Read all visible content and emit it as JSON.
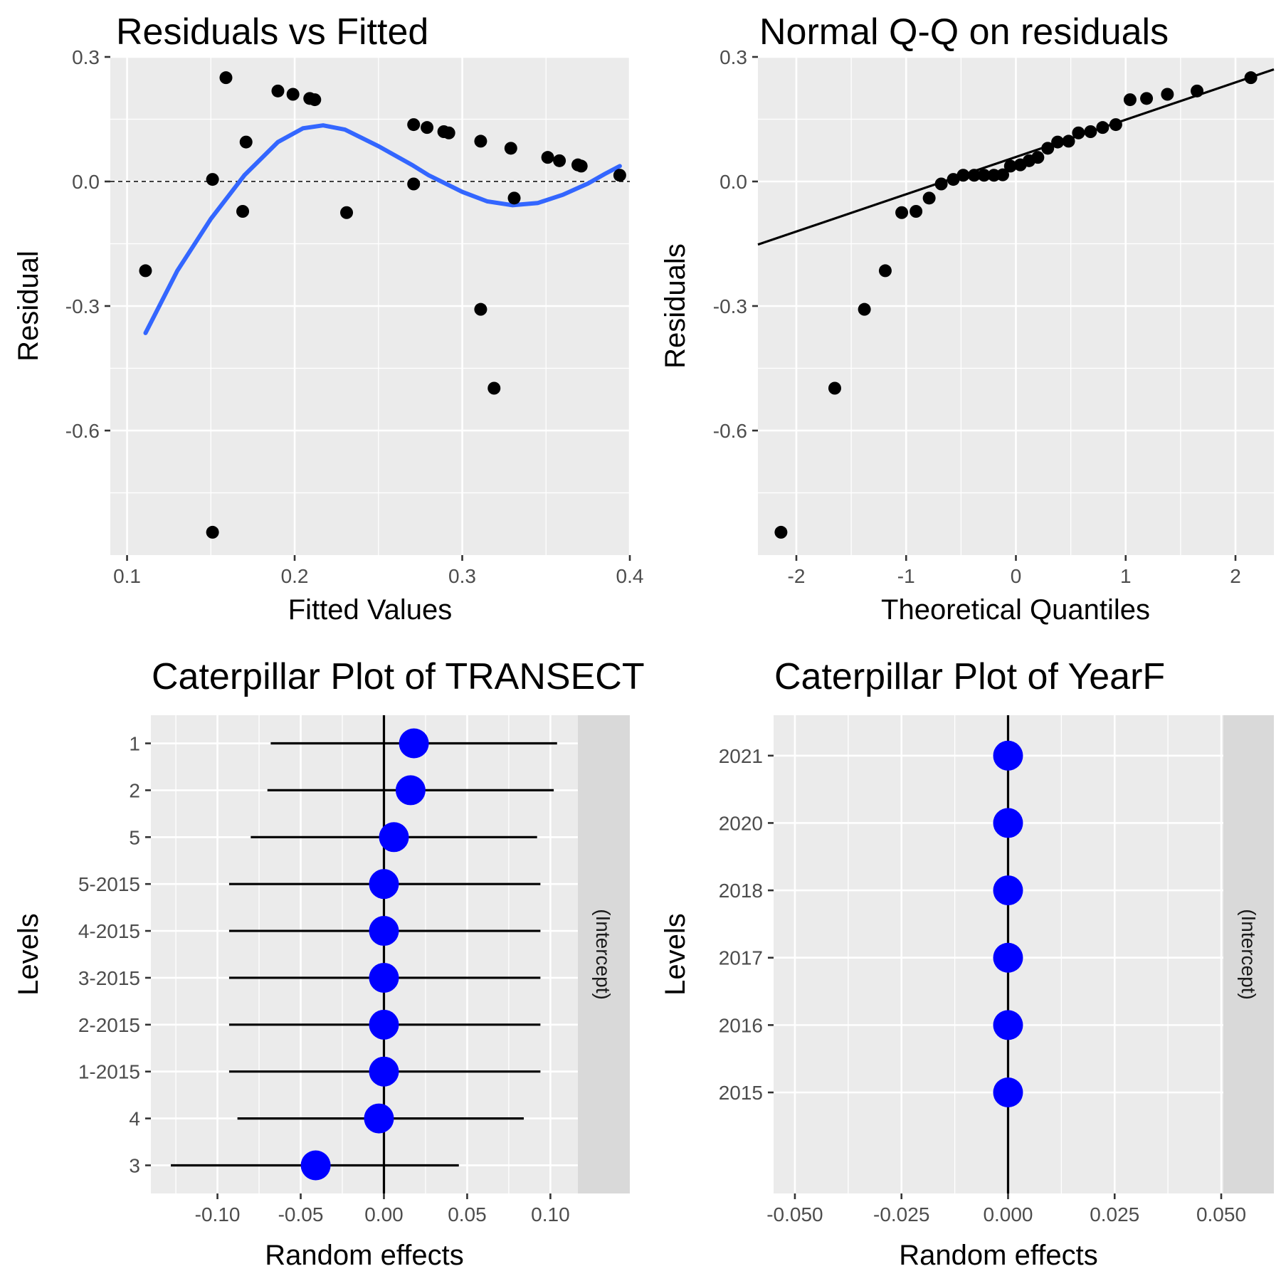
{
  "chart_data": [
    {
      "type": "scatter",
      "title": "Residuals vs Fitted",
      "xlabel": "Fitted Values",
      "ylabel": "Residual",
      "xlim": [
        0.09,
        0.4
      ],
      "ylim": [
        -0.9,
        0.3
      ],
      "x_ticks": [
        0.1,
        0.2,
        0.3,
        0.4
      ],
      "x_tick_labels": [
        "0.1",
        "0.2",
        "0.3",
        "0.4"
      ],
      "y_ticks": [
        0.3,
        0.0,
        -0.3,
        -0.6
      ],
      "y_tick_labels": [
        "0.3",
        "0.0",
        "-0.3",
        "-0.6"
      ],
      "grid": true,
      "reference_line": {
        "y": 0,
        "style": "dashed"
      },
      "points": [
        {
          "x": 0.111,
          "y": -0.215
        },
        {
          "x": 0.151,
          "y": 0.005
        },
        {
          "x": 0.151,
          "y": -0.845
        },
        {
          "x": 0.159,
          "y": 0.25
        },
        {
          "x": 0.169,
          "y": -0.072
        },
        {
          "x": 0.171,
          "y": 0.095
        },
        {
          "x": 0.19,
          "y": 0.218
        },
        {
          "x": 0.199,
          "y": 0.21
        },
        {
          "x": 0.209,
          "y": 0.2
        },
        {
          "x": 0.212,
          "y": 0.197
        },
        {
          "x": 0.231,
          "y": -0.075
        },
        {
          "x": 0.271,
          "y": 0.137
        },
        {
          "x": 0.271,
          "y": -0.006
        },
        {
          "x": 0.279,
          "y": 0.13
        },
        {
          "x": 0.289,
          "y": 0.12
        },
        {
          "x": 0.292,
          "y": 0.117
        },
        {
          "x": 0.311,
          "y": 0.097
        },
        {
          "x": 0.311,
          "y": -0.308
        },
        {
          "x": 0.319,
          "y": -0.498
        },
        {
          "x": 0.329,
          "y": 0.08
        },
        {
          "x": 0.331,
          "y": -0.04
        },
        {
          "x": 0.351,
          "y": 0.058
        },
        {
          "x": 0.358,
          "y": 0.05
        },
        {
          "x": 0.369,
          "y": 0.04
        },
        {
          "x": 0.371,
          "y": 0.037
        },
        {
          "x": 0.394,
          "y": 0.015
        }
      ],
      "smooth_line": {
        "color": "#3366ff",
        "x": [
          0.111,
          0.13,
          0.15,
          0.17,
          0.19,
          0.205,
          0.217,
          0.23,
          0.25,
          0.27,
          0.28,
          0.29,
          0.3,
          0.315,
          0.33,
          0.345,
          0.36,
          0.375,
          0.385,
          0.394
        ],
        "y": [
          -0.365,
          -0.215,
          -0.09,
          0.015,
          0.095,
          0.128,
          0.135,
          0.125,
          0.085,
          0.04,
          0.015,
          -0.005,
          -0.025,
          -0.048,
          -0.057,
          -0.052,
          -0.032,
          -0.005,
          0.018,
          0.037
        ]
      }
    },
    {
      "type": "scatter",
      "title": "Normal Q-Q on residuals",
      "xlabel": "Theoretical Quantiles",
      "ylabel": "Residuals",
      "xlim": [
        -2.35,
        2.35
      ],
      "ylim": [
        -0.9,
        0.3
      ],
      "x_ticks": [
        -2,
        -1,
        0,
        1,
        2
      ],
      "x_tick_labels": [
        "-2",
        "-1",
        "0",
        "1",
        "2"
      ],
      "y_ticks": [
        0.3,
        0.0,
        -0.3,
        -0.6
      ],
      "y_tick_labels": [
        "0.3",
        "0.0",
        "-0.3",
        "-0.6"
      ],
      "grid": true,
      "qq_line": {
        "x1": -2.35,
        "y1": -0.152,
        "x2": 2.35,
        "y2": 0.27
      },
      "points": [
        {
          "x": -2.14,
          "y": -0.845
        },
        {
          "x": -1.65,
          "y": -0.498
        },
        {
          "x": -1.38,
          "y": -0.308
        },
        {
          "x": -1.19,
          "y": -0.215
        },
        {
          "x": -1.04,
          "y": -0.075
        },
        {
          "x": -0.91,
          "y": -0.072
        },
        {
          "x": -0.79,
          "y": -0.04
        },
        {
          "x": -0.68,
          "y": -0.006
        },
        {
          "x": -0.57,
          "y": 0.005
        },
        {
          "x": -0.48,
          "y": 0.015
        },
        {
          "x": -0.38,
          "y": 0.015
        },
        {
          "x": -0.29,
          "y": 0.015
        },
        {
          "x": -0.2,
          "y": 0.015
        },
        {
          "x": -0.12,
          "y": 0.016
        },
        {
          "x": -0.05,
          "y": 0.037
        },
        {
          "x": 0.04,
          "y": 0.04
        },
        {
          "x": 0.12,
          "y": 0.05
        },
        {
          "x": 0.2,
          "y": 0.058
        },
        {
          "x": 0.29,
          "y": 0.08
        },
        {
          "x": 0.38,
          "y": 0.095
        },
        {
          "x": 0.48,
          "y": 0.097
        },
        {
          "x": 0.57,
          "y": 0.117
        },
        {
          "x": 0.68,
          "y": 0.12
        },
        {
          "x": 0.79,
          "y": 0.13
        },
        {
          "x": 0.91,
          "y": 0.137
        },
        {
          "x": 1.04,
          "y": 0.197
        },
        {
          "x": 1.19,
          "y": 0.2
        },
        {
          "x": 1.38,
          "y": 0.21
        },
        {
          "x": 1.65,
          "y": 0.218
        },
        {
          "x": 2.14,
          "y": 0.25
        }
      ]
    },
    {
      "type": "scatter",
      "title": "Caterpillar Plot of  TRANSECT",
      "xlabel": "Random effects",
      "ylabel": "Levels",
      "strip_label": "(Intercept)",
      "xlim": [
        -0.14,
        0.1165
      ],
      "x_ticks": [
        -0.1,
        -0.05,
        0.0,
        0.05,
        0.1
      ],
      "x_tick_labels": [
        "-0.10",
        "-0.05",
        "0.00",
        "0.05",
        "0.10"
      ],
      "grid": true,
      "reference_line": {
        "x": 0
      },
      "point_color": "#0000ff",
      "categories": [
        "1",
        "2",
        "5",
        "5-2015",
        "4-2015",
        "3-2015",
        "2-2015",
        "1-2015",
        "4",
        "3"
      ],
      "values": [
        0.018,
        0.016,
        0.006,
        0.0,
        0.0,
        0.0,
        0.0,
        0.0,
        -0.003,
        -0.041
      ],
      "lower": [
        -0.068,
        -0.07,
        -0.08,
        -0.093,
        -0.093,
        -0.093,
        -0.093,
        -0.093,
        -0.088,
        -0.128
      ],
      "upper": [
        0.104,
        0.102,
        0.092,
        0.094,
        0.094,
        0.094,
        0.094,
        0.094,
        0.084,
        0.045
      ]
    },
    {
      "type": "scatter",
      "title": "Caterpillar Plot of  YearF",
      "xlabel": "Random effects",
      "ylabel": "Levels",
      "strip_label": "(Intercept)",
      "xlim": [
        -0.055,
        0.0505
      ],
      "x_ticks": [
        -0.05,
        -0.025,
        0.0,
        0.025,
        0.05
      ],
      "x_tick_labels": [
        "-0.050",
        "-0.025",
        "0.000",
        "0.025",
        "0.050"
      ],
      "grid": true,
      "reference_line": {
        "x": 0
      },
      "point_color": "#0000ff",
      "categories": [
        "2021",
        "2020",
        "2018",
        "2017",
        "2016",
        "2015"
      ],
      "values": [
        0,
        0,
        0,
        0,
        0,
        0
      ]
    }
  ]
}
